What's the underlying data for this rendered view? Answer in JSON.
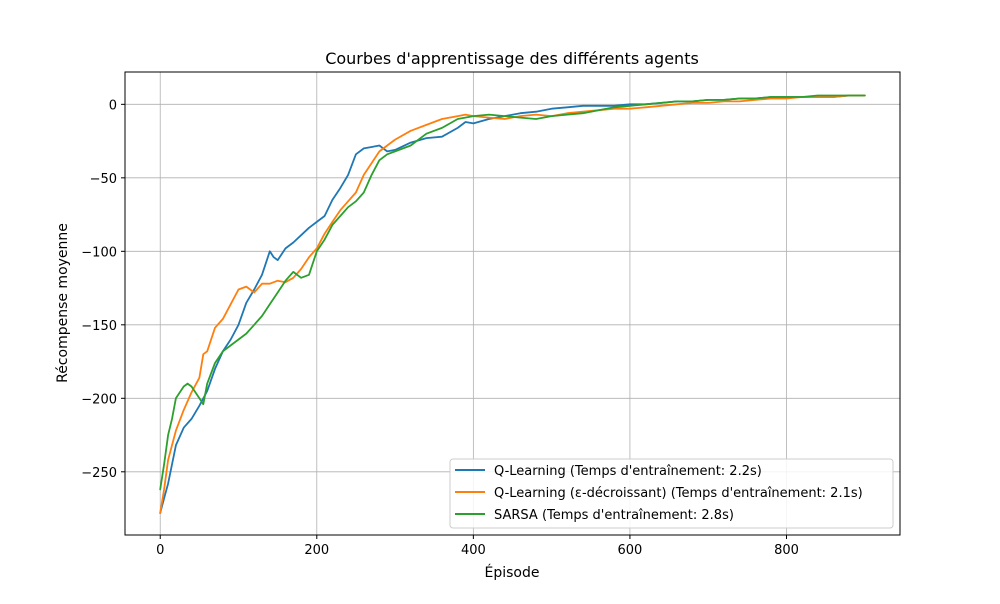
{
  "chart_data": {
    "type": "line",
    "title": "Courbes d'apprentissage des différents agents",
    "xlabel": "Épisode",
    "ylabel": "Récompense moyenne",
    "xlim": [
      -45,
      945
    ],
    "ylim": [
      -293,
      22
    ],
    "xticks": [
      0,
      200,
      400,
      600,
      800
    ],
    "xtick_labels": [
      "0",
      "200",
      "400",
      "600",
      "800"
    ],
    "yticks": [
      0,
      -50,
      -100,
      -150,
      -200,
      -250
    ],
    "ytick_labels": [
      "0",
      "−50",
      "−100",
      "−150",
      "−200",
      "−250"
    ],
    "grid": true,
    "legend_position": "lower-right",
    "series": [
      {
        "name": "Q-Learning (Temps d'entraînement: 2.2s)",
        "color": "#1f77b4",
        "x": [
          0,
          5,
          10,
          20,
          30,
          40,
          50,
          60,
          70,
          80,
          90,
          100,
          110,
          120,
          130,
          140,
          145,
          150,
          160,
          170,
          180,
          190,
          200,
          210,
          220,
          230,
          240,
          250,
          260,
          270,
          280,
          290,
          300,
          320,
          340,
          360,
          380,
          390,
          400,
          420,
          440,
          460,
          480,
          500,
          520,
          540,
          560,
          580,
          600,
          620,
          640,
          660,
          680,
          700,
          720,
          740,
          760,
          780,
          800,
          820,
          840,
          860,
          880,
          900
        ],
        "y": [
          -278,
          -268,
          -258,
          -232,
          -220,
          -214,
          -205,
          -195,
          -180,
          -168,
          -160,
          -150,
          -135,
          -126,
          -116,
          -100,
          -104,
          -106,
          -98,
          -94,
          -89,
          -84,
          -80,
          -76,
          -65,
          -57,
          -48,
          -34,
          -30,
          -29,
          -28,
          -32,
          -31,
          -26,
          -23,
          -22,
          -16,
          -12,
          -13,
          -10,
          -8,
          -6,
          -5,
          -3,
          -2,
          -1,
          -1,
          -1,
          0,
          0,
          1,
          2,
          2,
          3,
          3,
          4,
          4,
          5,
          5,
          5,
          5,
          5,
          6,
          6
        ]
      },
      {
        "name": "Q-Learning (ε-décroissant) (Temps d'entraînement: 2.1s)",
        "color": "#ff7f0e",
        "x": [
          0,
          5,
          10,
          20,
          30,
          40,
          50,
          55,
          60,
          70,
          80,
          90,
          100,
          110,
          120,
          130,
          140,
          150,
          160,
          170,
          180,
          190,
          200,
          210,
          220,
          230,
          240,
          250,
          260,
          270,
          280,
          290,
          300,
          320,
          340,
          360,
          380,
          390,
          400,
          420,
          440,
          460,
          480,
          500,
          520,
          540,
          560,
          580,
          600,
          620,
          640,
          660,
          680,
          700,
          720,
          740,
          760,
          780,
          800,
          820,
          840,
          860,
          880,
          900
        ],
        "y": [
          -278,
          -262,
          -242,
          -222,
          -208,
          -196,
          -186,
          -170,
          -168,
          -152,
          -146,
          -136,
          -126,
          -124,
          -128,
          -122,
          -122,
          -120,
          -121,
          -118,
          -112,
          -104,
          -98,
          -88,
          -80,
          -72,
          -66,
          -60,
          -48,
          -40,
          -32,
          -28,
          -24,
          -18,
          -14,
          -10,
          -8,
          -7,
          -8,
          -9,
          -10,
          -8,
          -7,
          -8,
          -6,
          -5,
          -4,
          -3,
          -3,
          -2,
          -1,
          0,
          1,
          1,
          2,
          2,
          3,
          4,
          4,
          5,
          5,
          5,
          6,
          6
        ]
      },
      {
        "name": "SARSA (Temps d'entraînement: 2.8s)",
        "color": "#2ca02c",
        "x": [
          0,
          5,
          10,
          15,
          20,
          25,
          30,
          35,
          40,
          50,
          55,
          60,
          70,
          80,
          90,
          100,
          110,
          120,
          130,
          140,
          150,
          160,
          170,
          180,
          190,
          200,
          210,
          220,
          230,
          240,
          250,
          260,
          270,
          280,
          290,
          300,
          320,
          340,
          360,
          380,
          400,
          420,
          440,
          460,
          480,
          500,
          520,
          540,
          560,
          580,
          600,
          620,
          640,
          660,
          680,
          700,
          720,
          740,
          760,
          780,
          800,
          820,
          840,
          860,
          880,
          900
        ],
        "y": [
          -262,
          -245,
          -225,
          -214,
          -200,
          -196,
          -192,
          -190,
          -192,
          -200,
          -204,
          -190,
          -176,
          -168,
          -164,
          -160,
          -156,
          -150,
          -144,
          -136,
          -128,
          -120,
          -114,
          -118,
          -116,
          -100,
          -92,
          -82,
          -76,
          -70,
          -66,
          -60,
          -48,
          -38,
          -34,
          -32,
          -28,
          -20,
          -16,
          -10,
          -8,
          -7,
          -8,
          -9,
          -10,
          -8,
          -7,
          -6,
          -4,
          -2,
          -1,
          0,
          1,
          2,
          2,
          3,
          3,
          4,
          4,
          5,
          5,
          5,
          6,
          6,
          6,
          6
        ]
      }
    ]
  }
}
